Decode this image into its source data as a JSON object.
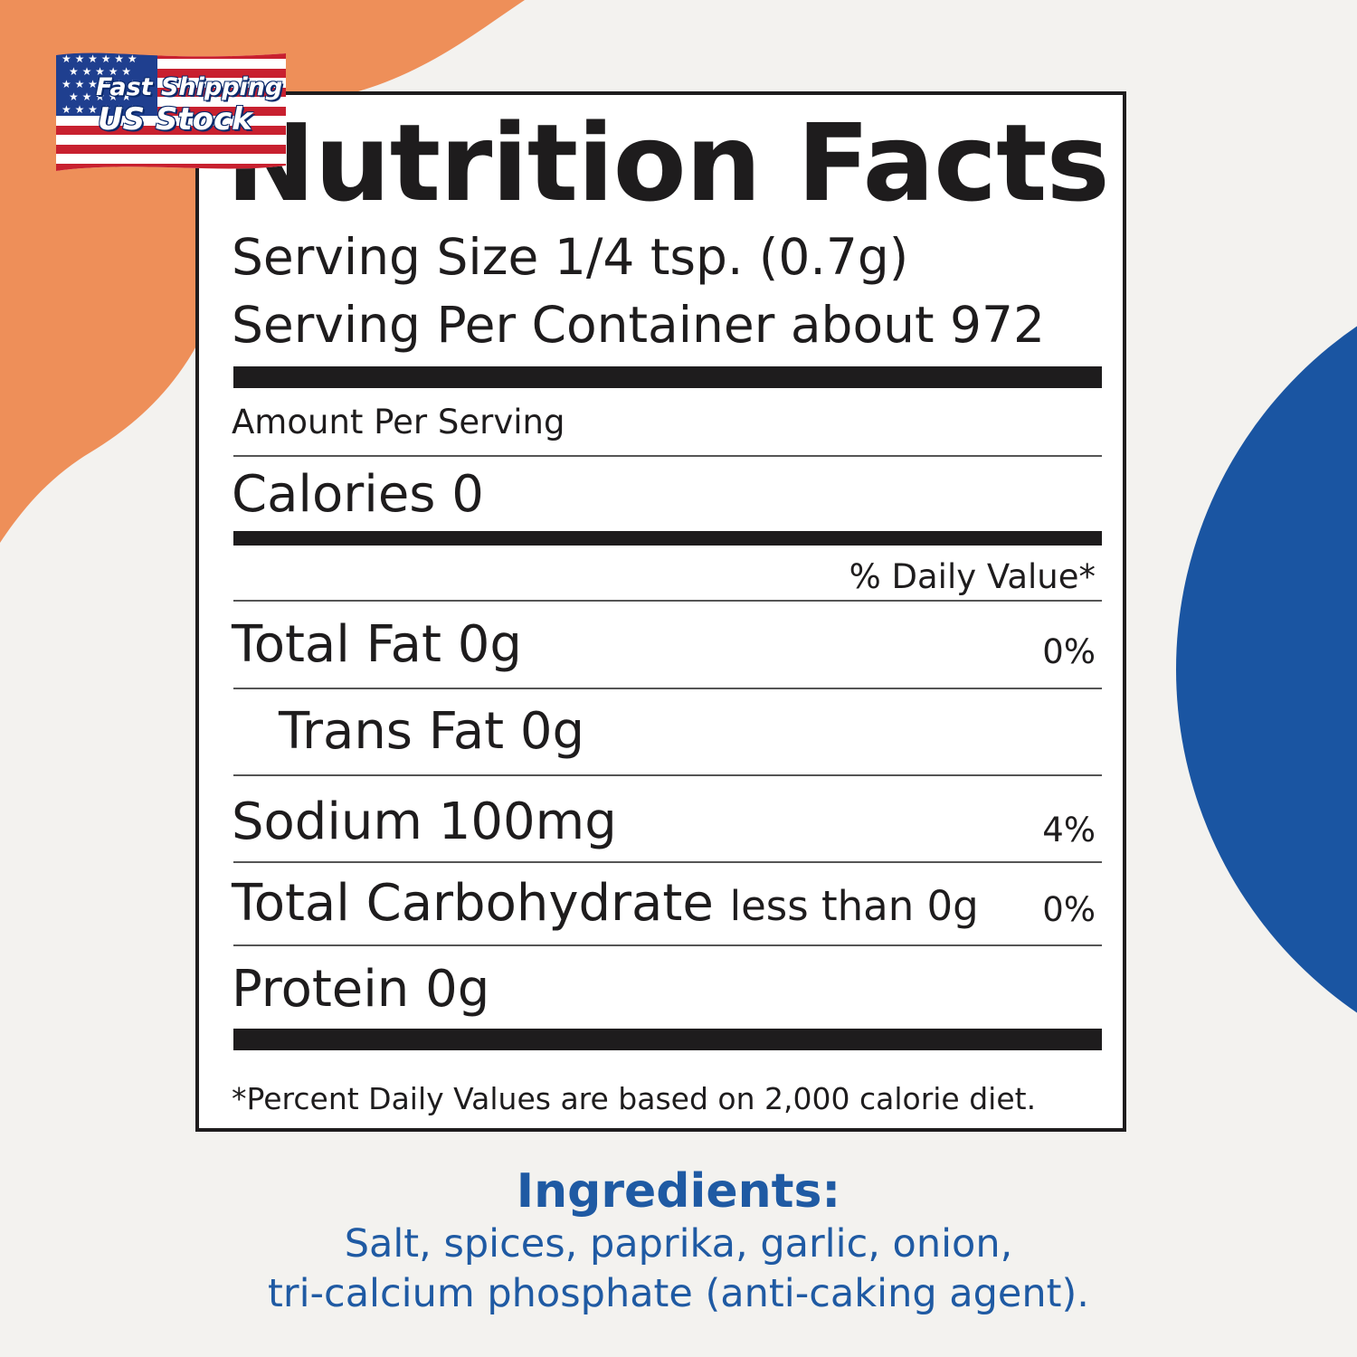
{
  "colors": {
    "background": "#f3f2ef",
    "orange_blob": "#ee8f59",
    "blue_circle": "#1a55a2",
    "ink": "#1e1c1d",
    "ingredients_text": "#1f5aa3"
  },
  "badge": {
    "icon": "us-flag-icon",
    "line1": "Fast Shipping",
    "line2": "US Stock"
  },
  "label": {
    "title": "Nutrition Facts",
    "serving_size": "Serving Size 1/4 tsp. (0.7g)",
    "servings_per_container": "Serving Per Container about 972",
    "amount_per_serving": "Amount Per Serving",
    "calories": "Calories 0",
    "daily_value_header": "% Daily Value*",
    "rows": [
      {
        "name": "Total Fat 0g",
        "dv": "0%"
      },
      {
        "name": "Trans Fat 0g",
        "dv": ""
      },
      {
        "name": "Sodium 100mg",
        "dv": "4%"
      },
      {
        "name": "Total Carbohydrate",
        "suffix": "less than 0g",
        "dv": "0%"
      },
      {
        "name": "Protein 0g",
        "dv": ""
      }
    ],
    "footnote": "*Percent Daily Values are based on 2,000 calorie diet."
  },
  "ingredients": {
    "title": "Ingredients:",
    "line1": "Salt, spices, paprika, garlic, onion,",
    "line2": "tri-calcium phosphate (anti-caking agent)."
  }
}
